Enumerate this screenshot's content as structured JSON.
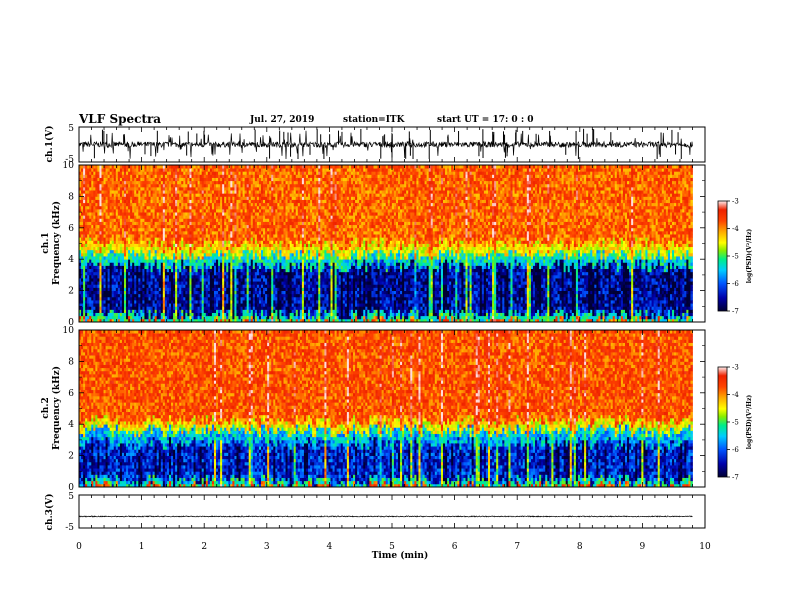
{
  "header": {
    "title": "VLF Spectra",
    "date": "Jul. 27, 2019",
    "station": "station=ITK",
    "start": "start UT =  17: 0 : 0"
  },
  "chart_data": [
    {
      "type": "line",
      "name": "ch1-waveform",
      "ylabel": "ch.1(V)",
      "ylim": [
        -5,
        5
      ],
      "yticks": [
        "5",
        "-5"
      ],
      "xlim": [
        0,
        10
      ],
      "baseline": 0,
      "noise_amplitude": 0.8,
      "spike_amplitude": 3.5
    },
    {
      "type": "heatmap",
      "name": "ch1-spectrogram",
      "ylabel": "ch.1\nFrequency (kHz)",
      "ylim": [
        0,
        10
      ],
      "yticks": [
        "0",
        "2",
        "4",
        "6",
        "8",
        "10"
      ],
      "xlim": [
        0,
        9.8
      ],
      "colorbar": {
        "label": "log(PSD)(V²/Hz)",
        "range": [
          -7,
          -3
        ],
        "ticks": [
          "-3",
          "-4",
          "-5",
          "-6",
          "-7"
        ]
      },
      "bands": [
        {
          "from_khz": 0,
          "to_khz": 0.5,
          "log_psd": -5.5
        },
        {
          "from_khz": 0.5,
          "to_khz": 3.6,
          "log_psd": -6.6
        },
        {
          "from_khz": 3.6,
          "to_khz": 4.3,
          "log_psd": -5.6
        },
        {
          "from_khz": 4.3,
          "to_khz": 5.0,
          "log_psd": -4.6
        },
        {
          "from_khz": 5.0,
          "to_khz": 10,
          "log_psd": -3.9
        }
      ]
    },
    {
      "type": "heatmap",
      "name": "ch2-spectrogram",
      "ylabel": "ch.2\nFrequency (kHz)",
      "ylim": [
        0,
        10
      ],
      "yticks": [
        "0",
        "2",
        "4",
        "6",
        "8",
        "10"
      ],
      "xlim": [
        0,
        9.8
      ],
      "colorbar": {
        "label": "log(PSD)(V²/Hz)",
        "range": [
          -7,
          -3
        ],
        "ticks": [
          "-3",
          "-4",
          "-5",
          "-6",
          "-7"
        ]
      },
      "bands": [
        {
          "from_khz": 0,
          "to_khz": 0.4,
          "log_psd": -5.5
        },
        {
          "from_khz": 0.4,
          "to_khz": 2.8,
          "log_psd": -6.4
        },
        {
          "from_khz": 2.8,
          "to_khz": 3.6,
          "log_psd": -5.8
        },
        {
          "from_khz": 3.6,
          "to_khz": 4.2,
          "log_psd": -4.6
        },
        {
          "from_khz": 4.2,
          "to_khz": 10,
          "log_psd": -3.8
        }
      ]
    },
    {
      "type": "line",
      "name": "ch3-waveform",
      "ylabel": "ch.3(V)",
      "ylim": [
        -5,
        5
      ],
      "yticks": [
        "5",
        "-5"
      ],
      "xlim": [
        0,
        10
      ],
      "baseline": -1.5,
      "noise_amplitude": 0.15,
      "spike_amplitude": 0
    }
  ],
  "xaxis": {
    "label": "Time (min)",
    "ticks": [
      "0",
      "1",
      "2",
      "3",
      "4",
      "5",
      "6",
      "7",
      "8",
      "9",
      "10"
    ],
    "range": [
      0,
      10
    ]
  },
  "colors": {
    "colormap": [
      "#000033",
      "#0000aa",
      "#0055ff",
      "#00ccff",
      "#00ee88",
      "#88ee00",
      "#ffff00",
      "#ffaa00",
      "#ff4400",
      "#ee2200",
      "#ffdddd"
    ],
    "trace": "#000000"
  }
}
